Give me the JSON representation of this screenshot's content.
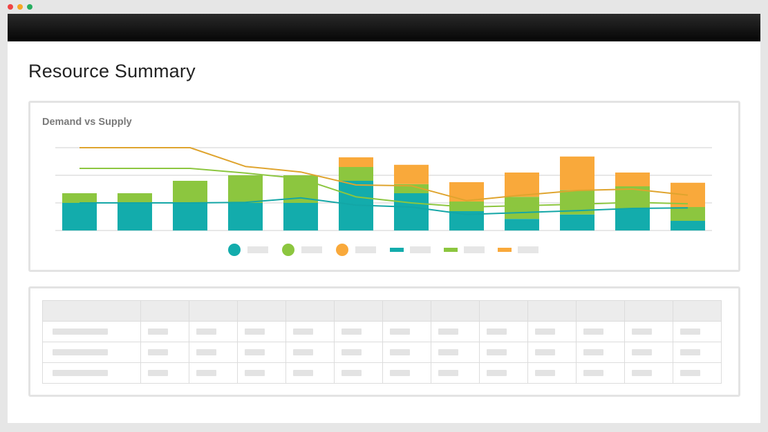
{
  "window": {
    "dot_colors": [
      "#ef4444",
      "#f5a623",
      "#27ae60"
    ]
  },
  "page": {
    "title": "Resource Summary"
  },
  "colors": {
    "teal": "#13acac",
    "green": "#8cc63f",
    "orange": "#f9a93b",
    "line_teal": "#13a6a6",
    "line_green": "#8cc63f",
    "line_orange": "#dfa42e",
    "grid": "#cfcfcf",
    "legend_placeholder": "#e6e6e6"
  },
  "chart_data": {
    "type": "bar",
    "title": "Demand vs Supply",
    "stacked": true,
    "categories": [
      "",
      "",
      "",
      "",
      "",
      "",
      "",
      "",
      "",
      "",
      "",
      ""
    ],
    "ylim": [
      0,
      3
    ],
    "gridlines": [
      0,
      1,
      2,
      3
    ],
    "series": [
      {
        "name": "",
        "kind": "bar",
        "color_key": "teal",
        "values": [
          1.0,
          1.0,
          1.0,
          1.0,
          1.0,
          1.8,
          1.35,
          0.7,
          0.42,
          0.58,
          0.8,
          0.35
        ]
      },
      {
        "name": "",
        "kind": "bar",
        "color_key": "green",
        "values": [
          0.35,
          0.35,
          0.8,
          1.0,
          1.0,
          0.5,
          0.33,
          0.35,
          0.8,
          0.88,
          0.8,
          0.5
        ]
      },
      {
        "name": "",
        "kind": "bar",
        "color_key": "orange",
        "values": [
          0,
          0,
          0,
          0,
          0,
          0.35,
          0.7,
          0.7,
          0.88,
          1.22,
          0.5,
          0.88
        ]
      },
      {
        "name": "",
        "kind": "line",
        "color_key": "line_teal",
        "values": [
          1.0,
          1.0,
          1.0,
          1.02,
          1.18,
          0.92,
          0.85,
          0.58,
          0.65,
          0.72,
          0.8,
          0.82
        ]
      },
      {
        "name": "",
        "kind": "line",
        "color_key": "line_green",
        "values": [
          2.25,
          2.25,
          2.25,
          2.08,
          1.88,
          1.22,
          1.0,
          0.85,
          0.9,
          0.95,
          1.02,
          0.97
        ]
      },
      {
        "name": "",
        "kind": "line",
        "color_key": "line_orange",
        "values": [
          3.0,
          3.0,
          3.0,
          2.32,
          2.12,
          1.65,
          1.62,
          1.08,
          1.28,
          1.45,
          1.5,
          1.28
        ]
      }
    ]
  },
  "table": {
    "columns": 13,
    "rows": 3
  }
}
